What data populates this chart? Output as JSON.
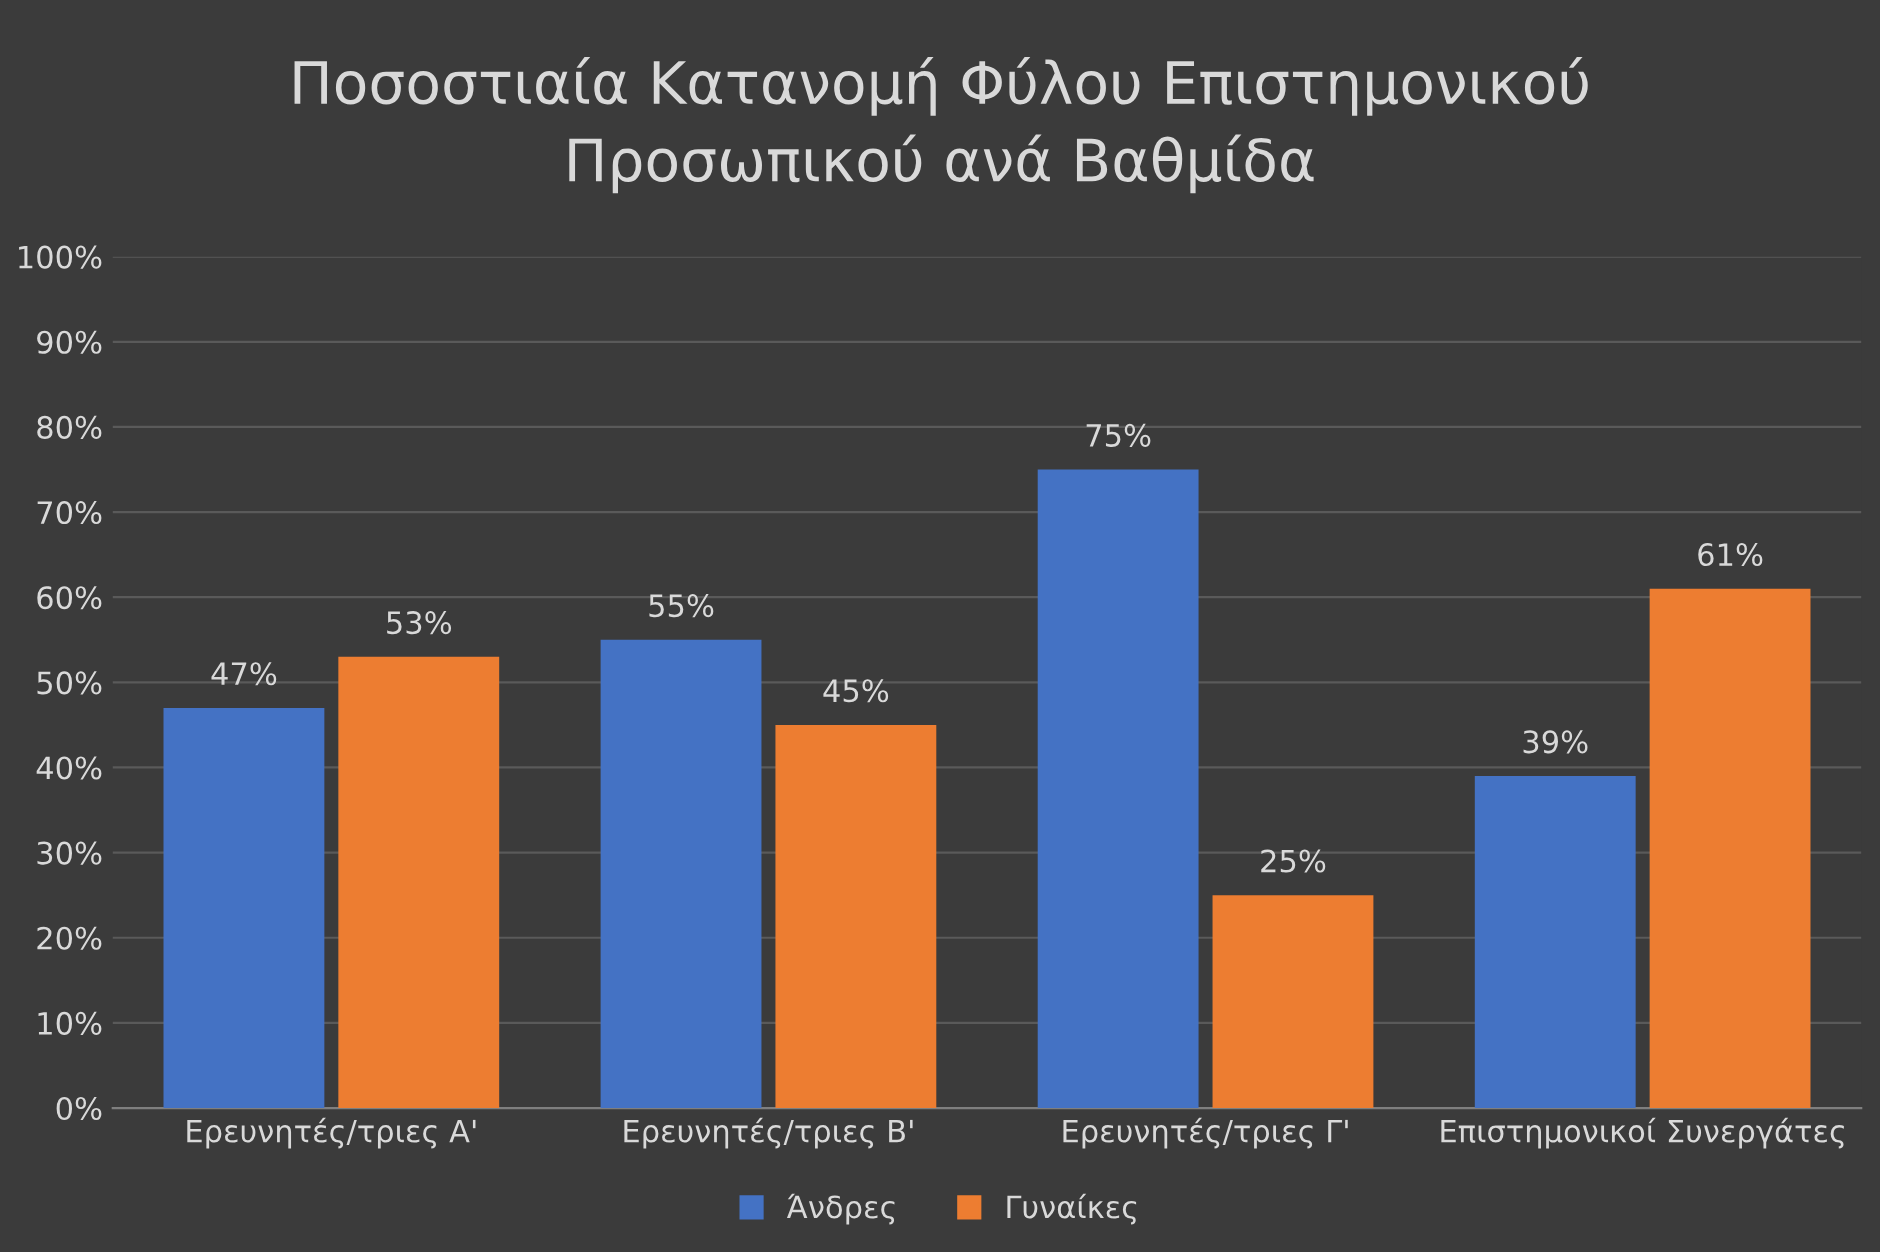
{
  "chart_data": {
    "type": "bar",
    "title": "Ποσοστιαία Κατανομή Φύλου Επιστημονικού\nΠροσωπικού ανά Βαθμίδα",
    "categories": [
      "Ερευνητές/τριες Α'",
      "Ερευνητές/τριες Β'",
      "Ερευνητές/τριες Γ'",
      "Επιστημονικοί Συνεργάτες"
    ],
    "series": [
      {
        "name": "Άνδρες",
        "color": "#4472c4",
        "values": [
          47,
          55,
          75,
          39
        ],
        "value_labels": [
          "47%",
          "55%",
          "75%",
          "39%"
        ]
      },
      {
        "name": "Γυναίκες",
        "color": "#ed7d31",
        "values": [
          53,
          45,
          25,
          61
        ],
        "value_labels": [
          "53%",
          "45%",
          "25%",
          "61%"
        ]
      }
    ],
    "ylim": [
      0,
      100
    ],
    "yticks": [
      {
        "value": 0,
        "label": "0%"
      },
      {
        "value": 10,
        "label": "10%"
      },
      {
        "value": 20,
        "label": "20%"
      },
      {
        "value": 30,
        "label": "30%"
      },
      {
        "value": 40,
        "label": "40%"
      },
      {
        "value": 50,
        "label": "50%"
      },
      {
        "value": 60,
        "label": "60%"
      },
      {
        "value": 70,
        "label": "70%"
      },
      {
        "value": 80,
        "label": "80%"
      },
      {
        "value": 90,
        "label": "90%"
      },
      {
        "value": 100,
        "label": "100%"
      }
    ],
    "grid": "y",
    "legend": "bottom"
  }
}
